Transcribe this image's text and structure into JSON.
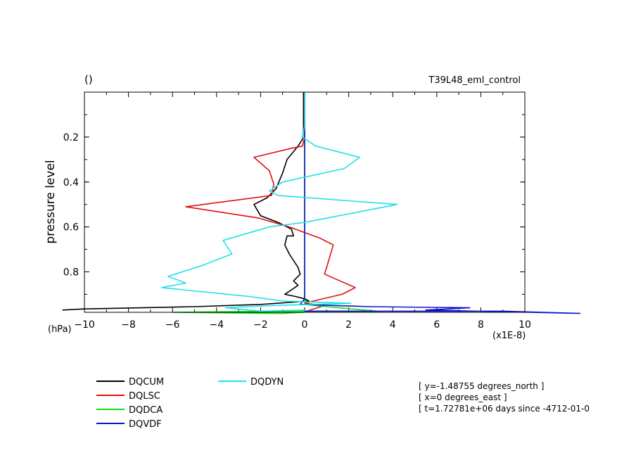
{
  "chart_data": {
    "type": "line",
    "title_left": "()",
    "title_right": "T39L48_eml_control",
    "ylabel": "pressure level",
    "yunit": "(hPa)",
    "xunit": "(x1E-8)",
    "xlim": [
      -10,
      10
    ],
    "ylim": [
      0,
      0.98
    ],
    "y_inverted": true,
    "x_ticks": [
      -10,
      -8,
      -6,
      -4,
      -2,
      0,
      2,
      4,
      6,
      8,
      10
    ],
    "x_tick_labels": [
      "−10",
      "−8",
      "−6",
      "−4",
      "−2",
      "0",
      "2",
      "4",
      "6",
      "8",
      "10"
    ],
    "y_ticks": [
      0.2,
      0.4,
      0.6,
      0.8
    ],
    "y_tick_labels": [
      "0.2",
      "0.4",
      "0.6",
      "0.8"
    ],
    "legend_position": "bottom-left",
    "series": [
      {
        "name": "DQCUM",
        "color": "#000000",
        "points": [
          [
            -0.05,
            0.0
          ],
          [
            -0.05,
            0.12
          ],
          [
            -0.05,
            0.17
          ],
          [
            -0.1,
            0.21
          ],
          [
            -0.3,
            0.24
          ],
          [
            -0.8,
            0.3
          ],
          [
            -1.0,
            0.36
          ],
          [
            -1.3,
            0.43
          ],
          [
            -1.7,
            0.47
          ],
          [
            -2.3,
            0.5
          ],
          [
            -2.0,
            0.55
          ],
          [
            -1.2,
            0.58
          ],
          [
            -0.6,
            0.61
          ],
          [
            -0.5,
            0.64
          ],
          [
            -0.8,
            0.64
          ],
          [
            -0.9,
            0.68
          ],
          [
            -0.7,
            0.72
          ],
          [
            -0.5,
            0.75
          ],
          [
            -0.3,
            0.78
          ],
          [
            -0.2,
            0.81
          ],
          [
            -0.5,
            0.84
          ],
          [
            -0.3,
            0.86
          ],
          [
            -0.6,
            0.88
          ],
          [
            -0.9,
            0.9
          ],
          [
            -0.4,
            0.91
          ],
          [
            0.0,
            0.92
          ],
          [
            0.2,
            0.93
          ],
          [
            -2.0,
            0.945
          ],
          [
            -5.0,
            0.955
          ],
          [
            -10.0,
            0.965
          ],
          [
            -11.0,
            0.97
          ]
        ]
      },
      {
        "name": "DQLSC",
        "color": "#e01010",
        "points": [
          [
            0.0,
            0.0
          ],
          [
            0.0,
            0.2
          ],
          [
            -0.1,
            0.24
          ],
          [
            -0.6,
            0.25
          ],
          [
            -2.3,
            0.29
          ],
          [
            -1.6,
            0.35
          ],
          [
            -1.4,
            0.41
          ],
          [
            -1.5,
            0.46
          ],
          [
            -5.4,
            0.51
          ],
          [
            -2.1,
            0.56
          ],
          [
            -0.7,
            0.6
          ],
          [
            0.7,
            0.65
          ],
          [
            1.3,
            0.68
          ],
          [
            1.0,
            0.78
          ],
          [
            0.9,
            0.81
          ],
          [
            1.6,
            0.84
          ],
          [
            2.3,
            0.87
          ],
          [
            1.7,
            0.9
          ],
          [
            0.4,
            0.93
          ],
          [
            0.0,
            0.94
          ],
          [
            0.9,
            0.95
          ],
          [
            0.1,
            0.975
          ]
        ]
      },
      {
        "name": "DQDCA",
        "color": "#10dd10",
        "points": [
          [
            0.0,
            0.0
          ],
          [
            0.0,
            0.9
          ],
          [
            0.0,
            0.945
          ],
          [
            1.0,
            0.955
          ],
          [
            3.3,
            0.975
          ],
          [
            -0.5,
            0.975
          ],
          [
            -6.0,
            0.98
          ],
          [
            -1.0,
            0.985
          ],
          [
            0.0,
            0.98
          ]
        ]
      },
      {
        "name": "DQVDF",
        "color": "#1010d0",
        "points": [
          [
            0.0,
            0.0
          ],
          [
            0.0,
            0.5
          ],
          [
            0.0,
            0.92
          ],
          [
            -0.2,
            0.945
          ],
          [
            3.0,
            0.955
          ],
          [
            7.5,
            0.96
          ],
          [
            5.5,
            0.97
          ],
          [
            12.5,
            0.985
          ],
          [
            9.0,
            0.975
          ],
          [
            0.0,
            0.975
          ]
        ]
      },
      {
        "name": "DQDYN",
        "color": "#20e0e8",
        "points": [
          [
            0.0,
            0.0
          ],
          [
            0.0,
            0.15
          ],
          [
            -0.1,
            0.2
          ],
          [
            0.5,
            0.24
          ],
          [
            2.5,
            0.29
          ],
          [
            1.8,
            0.34
          ],
          [
            -1.0,
            0.4
          ],
          [
            -1.6,
            0.44
          ],
          [
            -1.2,
            0.46
          ],
          [
            4.2,
            0.5
          ],
          [
            0.0,
            0.58
          ],
          [
            -1.6,
            0.6
          ],
          [
            -3.7,
            0.66
          ],
          [
            -3.3,
            0.72
          ],
          [
            -4.6,
            0.77
          ],
          [
            -6.2,
            0.82
          ],
          [
            -5.4,
            0.85
          ],
          [
            -6.5,
            0.87
          ],
          [
            -2.5,
            0.91
          ],
          [
            -1.0,
            0.93
          ],
          [
            2.1,
            0.94
          ],
          [
            -1.5,
            0.95
          ],
          [
            -3.6,
            0.96
          ],
          [
            -2.0,
            0.975
          ],
          [
            0.0,
            0.97
          ]
        ]
      }
    ],
    "annotations": [
      "[ y=-1.48755 degrees_north ]",
      "[ x=0 degrees_east ]",
      "[ t=1.72781e+06 days since -4712-01-0"
    ]
  }
}
